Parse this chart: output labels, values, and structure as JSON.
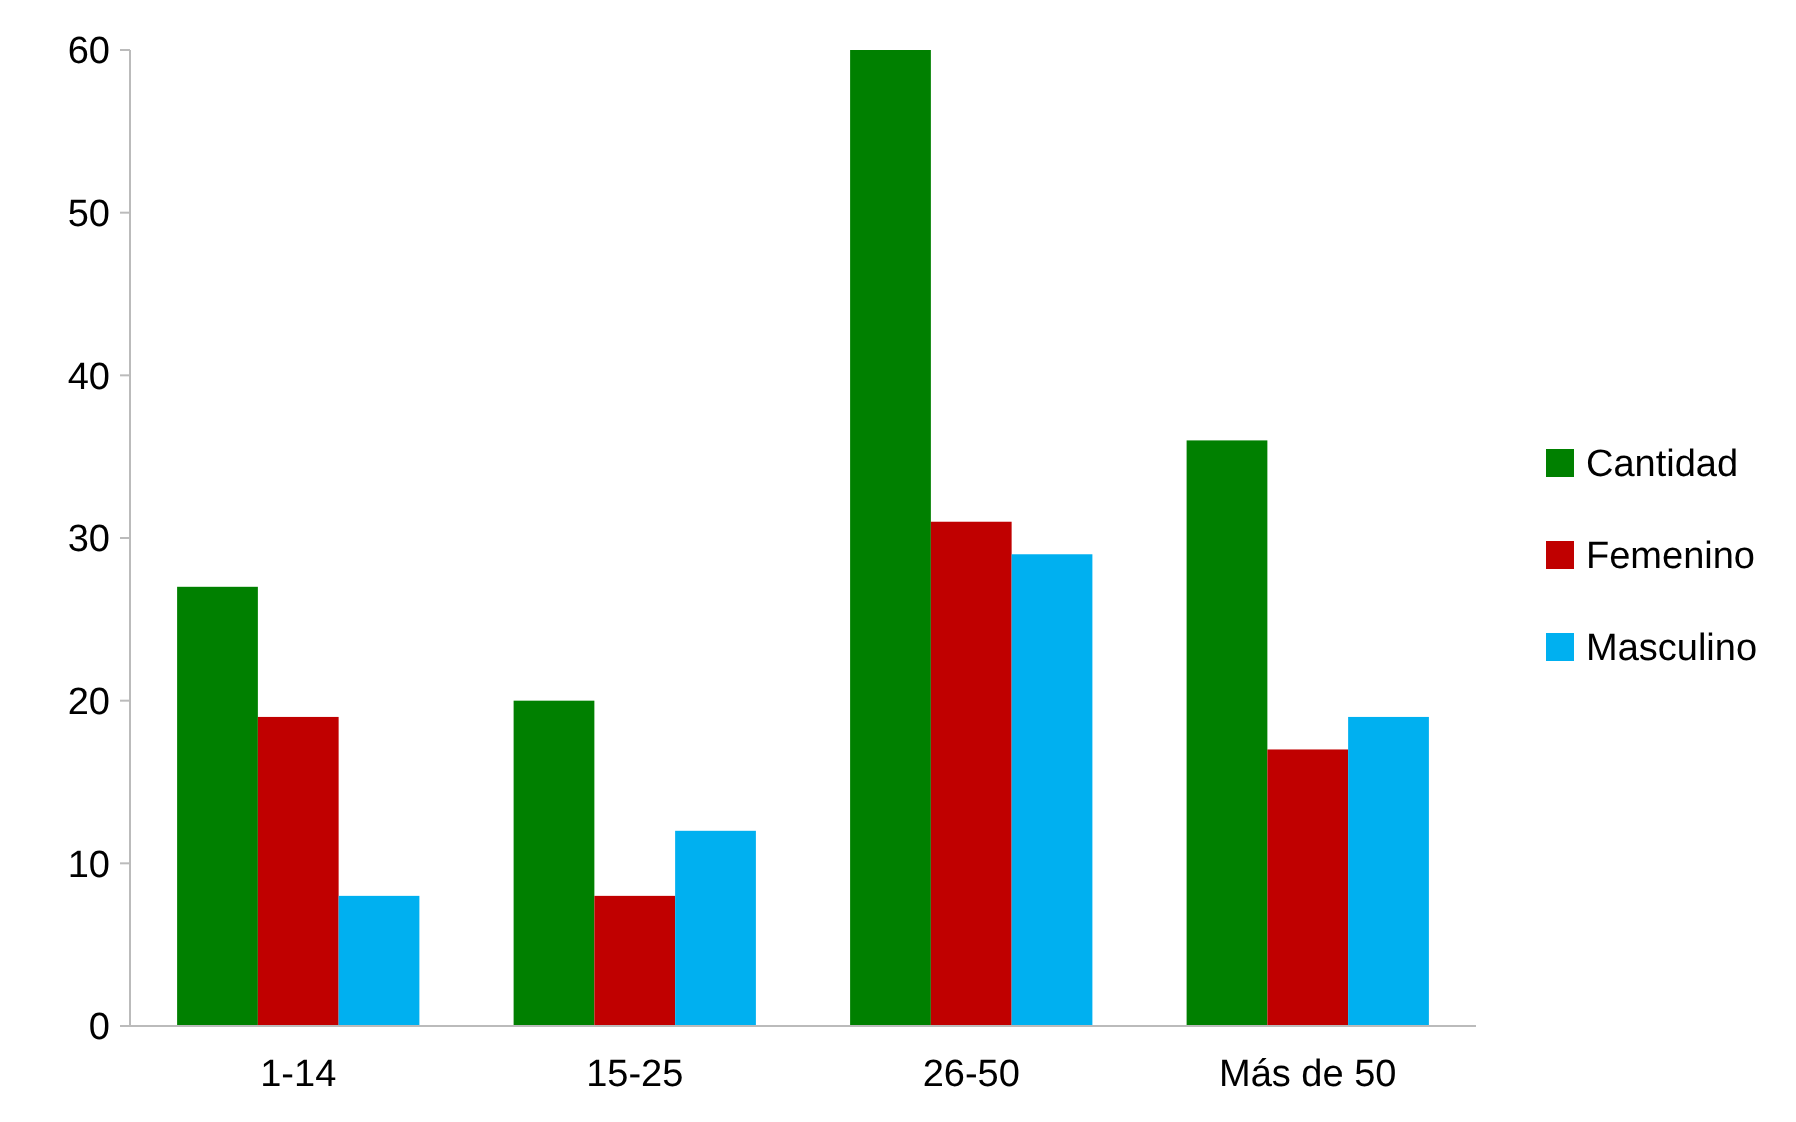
{
  "chart_data": {
    "type": "bar",
    "categories": [
      "1-14",
      "15-25",
      "26-50",
      "Más de 50"
    ],
    "series": [
      {
        "name": "Cantidad",
        "color": "#008000",
        "values": [
          27,
          20,
          60,
          36
        ]
      },
      {
        "name": "Femenino",
        "color": "#c00000",
        "values": [
          19,
          8,
          31,
          17
        ]
      },
      {
        "name": "Masculino",
        "color": "#00b0f0",
        "values": [
          8,
          12,
          29,
          19
        ]
      }
    ],
    "ylim": [
      0,
      60
    ],
    "yticks": [
      0,
      10,
      20,
      30,
      40,
      50,
      60
    ],
    "grid": false,
    "legend": "right"
  }
}
